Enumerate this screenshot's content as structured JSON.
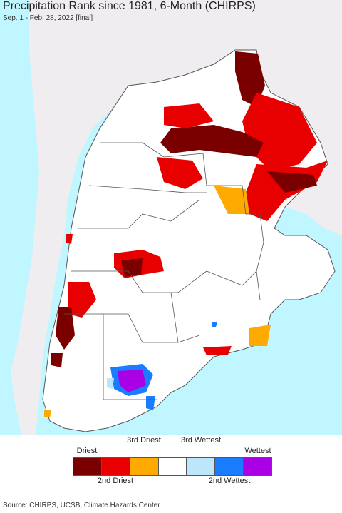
{
  "header": {
    "title": "Precipitation Rank since 1981, 6-Month (CHIRPS)",
    "subtitle": "Sep. 1 - Feb. 28, 2022 [final]"
  },
  "legend": {
    "top_labels": [
      "Driest",
      "3rd Driest",
      "3rd Wettest",
      "Wettest"
    ],
    "bottom_labels": [
      "2nd Driest",
      "2nd Wettest"
    ],
    "colors": [
      "#7a0000",
      "#e80000",
      "#ffaa00",
      "#ffffff",
      "#bde6fb",
      "#1a7cff",
      "#aa00e6"
    ]
  },
  "map": {
    "ocean_color": "#bff6ff",
    "land_color": "#ffffff",
    "outside_color": "#f0edf1",
    "border_color": "#555555"
  },
  "footer": {
    "source": "Source: CHIRPS, UCSB, Climate Hazards Center"
  }
}
